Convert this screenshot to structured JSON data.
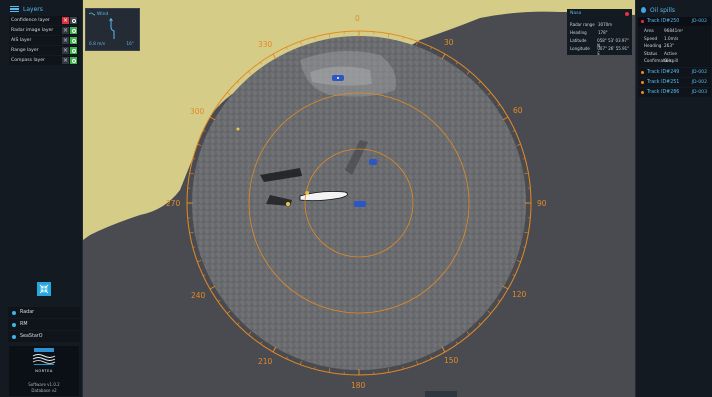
{
  "layers": {
    "title": "Layers",
    "items": [
      {
        "label": "Confidence layer",
        "enabled": false
      },
      {
        "label": "Radar image layer",
        "enabled": true
      },
      {
        "label": "AIS layer",
        "enabled": true
      },
      {
        "label": "Range layer",
        "enabled": true
      },
      {
        "label": "Compass layer",
        "enabled": true
      }
    ]
  },
  "modes": [
    {
      "label": "Radar"
    },
    {
      "label": "RM"
    },
    {
      "label": "SeaStarO"
    }
  ],
  "branding": {
    "logo_text": "NORTEA",
    "software": "Software v1.0.2",
    "database": "Database v2"
  },
  "wind": {
    "label": "Wind",
    "speed": "6.8 m/s",
    "direction": "16°"
  },
  "radar_info": {
    "title": "Nasa",
    "rows": [
      {
        "key": "Radar range",
        "value": "3070m"
      },
      {
        "key": "Heading",
        "value": "178°"
      },
      {
        "key": "Latitude",
        "value": "058° 53' 03.97\" N"
      },
      {
        "key": "Longitude",
        "value": "007° 26' 55.91\" E"
      }
    ]
  },
  "compass": {
    "labels": [
      "0",
      "30",
      "60",
      "90",
      "120",
      "150",
      "180",
      "210",
      "240",
      "270",
      "300",
      "330"
    ]
  },
  "oil_spills": {
    "title": "Oil spills",
    "tracks": [
      {
        "name": "Track ID#250",
        "id": "JD-002",
        "status_color": "#e2323c",
        "selected": true,
        "props": [
          {
            "key": "Area",
            "value": "96841m²"
          },
          {
            "key": "Speed",
            "value": "1.0m/s"
          },
          {
            "key": "Heading",
            "value": "263°"
          },
          {
            "key": "Status",
            "value": "Active"
          },
          {
            "key": "Confirmation",
            "value": "Oilspill"
          }
        ]
      },
      {
        "name": "Track ID#249",
        "id": "JD-002",
        "status_color": "#f08a1e",
        "selected": false,
        "props": []
      },
      {
        "name": "Track ID#251",
        "id": "JD-002",
        "status_color": "#f08a1e",
        "selected": false,
        "props": []
      },
      {
        "name": "Track ID#286",
        "id": "JD-003",
        "status_color": "#f08a1e",
        "selected": false,
        "props": []
      }
    ]
  },
  "colors": {
    "accent": "#58b9ea",
    "compass": "#e38a25",
    "land": "#d5cd87",
    "sea": "#4a4b50",
    "ok": "#3cb44a",
    "alert": "#e2323c"
  }
}
